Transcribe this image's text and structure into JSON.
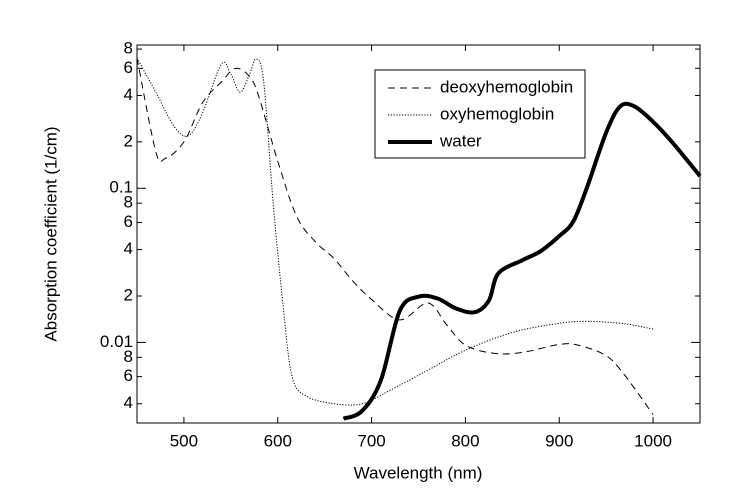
{
  "chart_data": {
    "type": "line",
    "x_label": "Wavelength (nm)",
    "y_label": "Absorption coefficient (1/cm)",
    "xlim": [
      450,
      1050
    ],
    "xticks": [
      500,
      600,
      700,
      800,
      900,
      1000
    ],
    "ylim": [
      0.003,
      0.85
    ],
    "log_y": true,
    "yticks": [
      {
        "value": 0.8,
        "label": "8"
      },
      {
        "value": 0.6,
        "label": "6"
      },
      {
        "value": 0.4,
        "label": "4"
      },
      {
        "value": 0.2,
        "label": "2"
      },
      0.1,
      {
        "value": 0.08,
        "label": "8"
      },
      {
        "value": 0.06,
        "label": "6"
      },
      {
        "value": 0.04,
        "label": "4"
      },
      {
        "value": 0.02,
        "label": "2"
      },
      0.01,
      {
        "value": 0.008,
        "label": "8"
      },
      {
        "value": 0.006,
        "label": "6"
      },
      {
        "value": 0.004,
        "label": "4"
      }
    ],
    "legend": "upper right",
    "series": [
      {
        "name": "deoxyhemoglobin",
        "color": "#000000",
        "style": "dashed",
        "width": 1,
        "x": [
          450,
          470,
          480,
          500,
          520,
          540,
          555,
          570,
          580,
          600,
          620,
          640,
          660,
          680,
          700,
          730,
          760,
          780,
          800,
          830,
          860,
          900,
          920,
          950,
          970,
          1000
        ],
        "values": [
          0.7,
          0.173,
          0.156,
          0.2,
          0.36,
          0.49,
          0.6,
          0.53,
          0.39,
          0.15,
          0.066,
          0.045,
          0.035,
          0.025,
          0.019,
          0.014,
          0.018,
          0.013,
          0.0096,
          0.0085,
          0.0086,
          0.0097,
          0.0096,
          0.0082,
          0.0061,
          0.0034
        ]
      },
      {
        "name": "oxyhemoglobin",
        "color": "#000000",
        "style": "dotted",
        "width": 1,
        "x": [
          450,
          470,
          490,
          505,
          520,
          540,
          550,
          560,
          570,
          577,
          585,
          595,
          605,
          615,
          630,
          660,
          690,
          720,
          760,
          800,
          850,
          900,
          930,
          970,
          1000
        ],
        "values": [
          0.7,
          0.42,
          0.25,
          0.22,
          0.31,
          0.64,
          0.55,
          0.42,
          0.55,
          0.69,
          0.49,
          0.082,
          0.019,
          0.0061,
          0.0045,
          0.004,
          0.004,
          0.0049,
          0.0066,
          0.0089,
          0.0116,
          0.0133,
          0.0137,
          0.0132,
          0.0122
        ]
      },
      {
        "name": "water",
        "color": "#000000",
        "style": "solid",
        "width": 4,
        "x": [
          670,
          690,
          710,
          730,
          750,
          770,
          790,
          810,
          825,
          835,
          860,
          880,
          900,
          915,
          930,
          950,
          965,
          980,
          1000,
          1020,
          1050
        ],
        "values": [
          0.0032,
          0.0036,
          0.0057,
          0.016,
          0.0198,
          0.0193,
          0.0166,
          0.0157,
          0.0187,
          0.028,
          0.034,
          0.039,
          0.049,
          0.061,
          0.103,
          0.23,
          0.34,
          0.34,
          0.27,
          0.2,
          0.12
        ]
      }
    ]
  }
}
